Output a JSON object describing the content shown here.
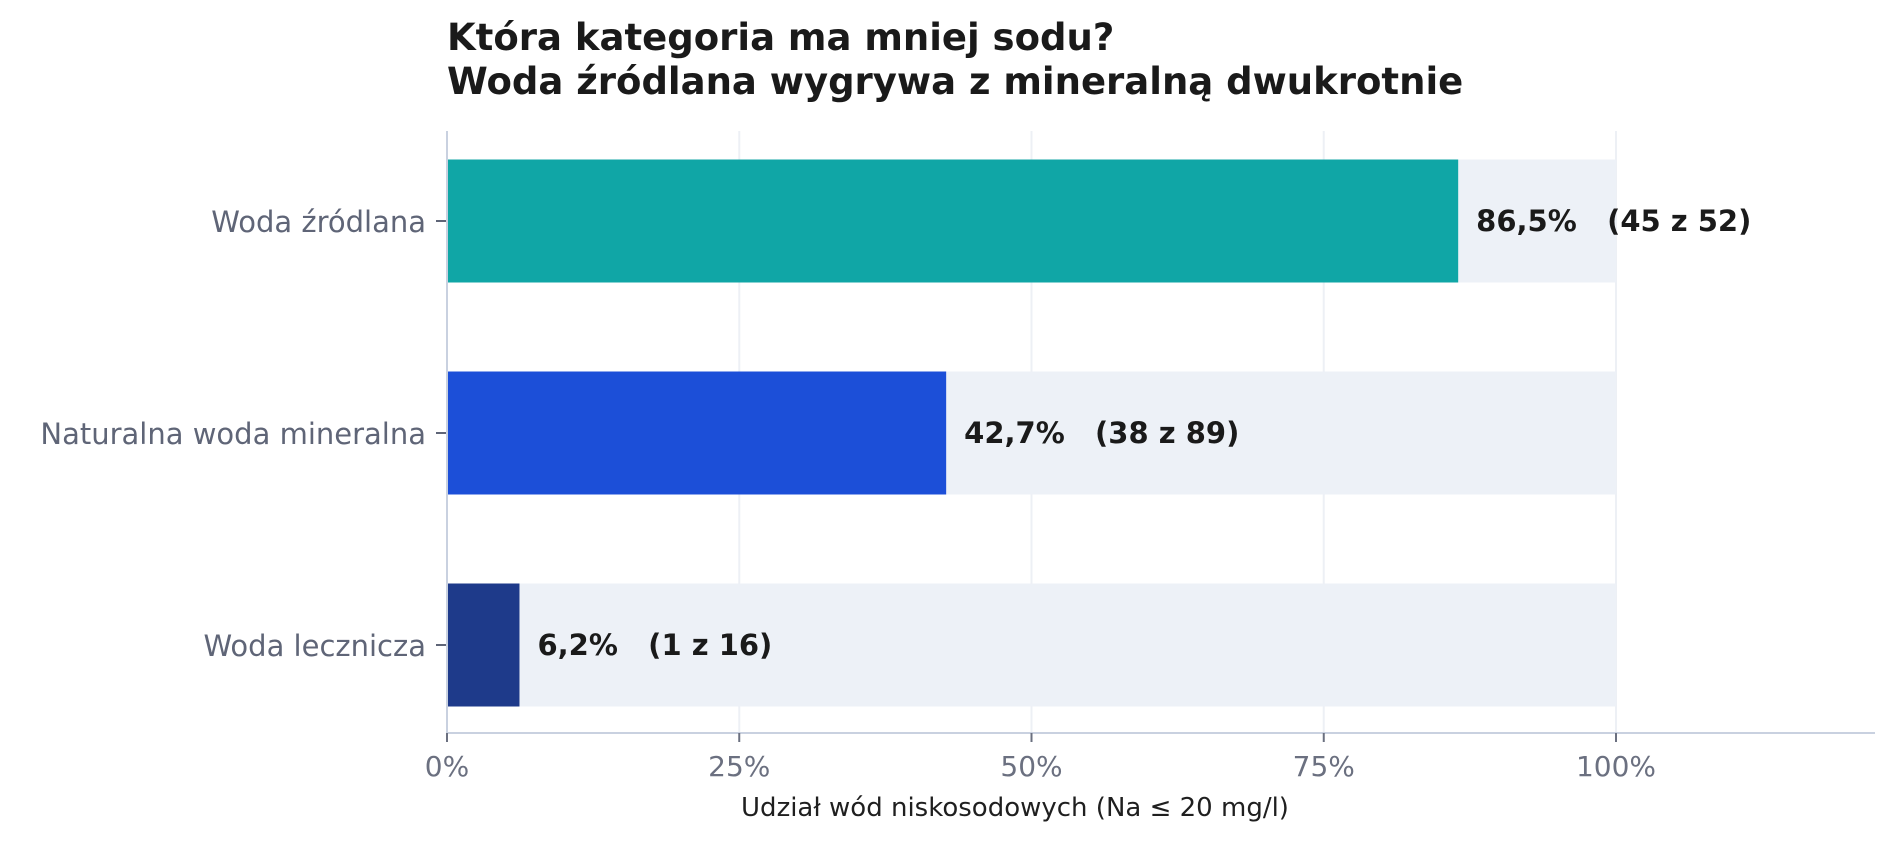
{
  "chart_data": {
    "type": "bar",
    "orientation": "horizontal",
    "title_lines": [
      "Która kategoria ma mniej sodu?",
      "Woda źródlana wygrywa z mineralną dwukrotnie"
    ],
    "categories": [
      "Woda źródlana",
      "Naturalna woda mineralna",
      "Woda lecznicza"
    ],
    "values": [
      86.5,
      42.7,
      6.2
    ],
    "data_labels": [
      "86,5%   (45 z 52)",
      "42,7%   (38 z 89)",
      "6,2%   (1 z 16)"
    ],
    "xlabel": "Udział wód niskosodowych (Na ≤ 20 mg/l)",
    "ylabel": "",
    "xlim": [
      0,
      100
    ],
    "x_ticks": [
      0,
      25,
      50,
      75,
      100
    ],
    "x_tick_labels": [
      "0%",
      "25%",
      "50%",
      "75%",
      "100%"
    ],
    "grid": "vertical",
    "background_track": true,
    "colors": {
      "bars": [
        "#10a6a6",
        "#1c4fd8",
        "#1e3a8a"
      ],
      "track": "#edf1f7",
      "grid": "#edf0f5",
      "axis": "#c9d1e0"
    }
  }
}
